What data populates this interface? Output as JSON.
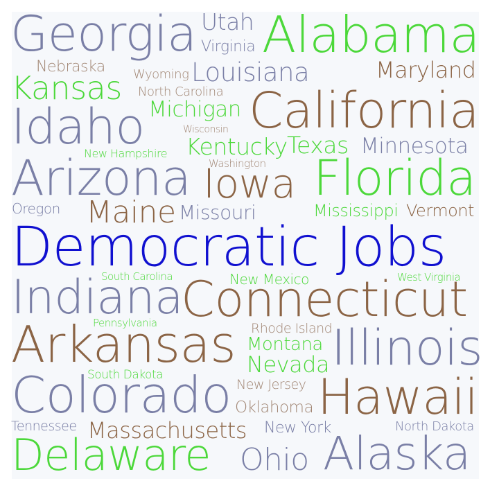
{
  "colors": {
    "slate": "#7a7fa6",
    "brown": "#8b6445",
    "green": "#4cd83a",
    "blue": "#1010d0",
    "tan": "#a18674"
  },
  "words": [
    {
      "text": "Georgia",
      "color": "slate"
    },
    {
      "text": "Utah",
      "color": "slate"
    },
    {
      "text": "Virginia",
      "color": "slate"
    },
    {
      "text": "Alabama",
      "color": "green"
    },
    {
      "text": "Nebraska",
      "color": "tan"
    },
    {
      "text": "Wyoming",
      "color": "tan"
    },
    {
      "text": "Louisiana",
      "color": "slate"
    },
    {
      "text": "Maryland",
      "color": "brown"
    },
    {
      "text": "Kansas",
      "color": "green"
    },
    {
      "text": "North Carolina",
      "color": "tan"
    },
    {
      "text": "Michigan",
      "color": "green"
    },
    {
      "text": "California",
      "color": "brown"
    },
    {
      "text": "Idaho",
      "color": "slate"
    },
    {
      "text": "Wisconsin",
      "color": "tan"
    },
    {
      "text": "New Hampshire",
      "color": "green"
    },
    {
      "text": "Kentucky",
      "color": "green"
    },
    {
      "text": "Texas",
      "color": "green"
    },
    {
      "text": "Minnesota",
      "color": "slate"
    },
    {
      "text": "Washington",
      "color": "tan"
    },
    {
      "text": "Arizona",
      "color": "slate"
    },
    {
      "text": "Iowa",
      "color": "brown"
    },
    {
      "text": "Florida",
      "color": "green"
    },
    {
      "text": "Oregon",
      "color": "slate"
    },
    {
      "text": "Maine",
      "color": "brown"
    },
    {
      "text": "Missouri",
      "color": "slate"
    },
    {
      "text": "Mississippi",
      "color": "green"
    },
    {
      "text": "Vermont",
      "color": "brown"
    },
    {
      "text": "Democratic Jobs",
      "color": "blue"
    },
    {
      "text": "South Carolina",
      "color": "green"
    },
    {
      "text": "New Mexico",
      "color": "green"
    },
    {
      "text": "West Virginia",
      "color": "green"
    },
    {
      "text": "Indiana",
      "color": "slate"
    },
    {
      "text": "Connecticut",
      "color": "brown"
    },
    {
      "text": "Pennsylvania",
      "color": "green"
    },
    {
      "text": "Rhode Island",
      "color": "tan"
    },
    {
      "text": "Arkansas",
      "color": "brown"
    },
    {
      "text": "Montana",
      "color": "green"
    },
    {
      "text": "Illinois",
      "color": "slate"
    },
    {
      "text": "Nevada",
      "color": "green"
    },
    {
      "text": "South Dakota",
      "color": "green"
    },
    {
      "text": "New Jersey",
      "color": "tan"
    },
    {
      "text": "Colorado",
      "color": "slate"
    },
    {
      "text": "Hawaii",
      "color": "brown"
    },
    {
      "text": "Oklahoma",
      "color": "tan"
    },
    {
      "text": "Tennessee",
      "color": "slate"
    },
    {
      "text": "Massachusetts",
      "color": "brown"
    },
    {
      "text": "New York",
      "color": "slate"
    },
    {
      "text": "North Dakota",
      "color": "slate"
    },
    {
      "text": "Delaware",
      "color": "green"
    },
    {
      "text": "Ohio",
      "color": "slate"
    },
    {
      "text": "Alaska",
      "color": "slate"
    }
  ]
}
